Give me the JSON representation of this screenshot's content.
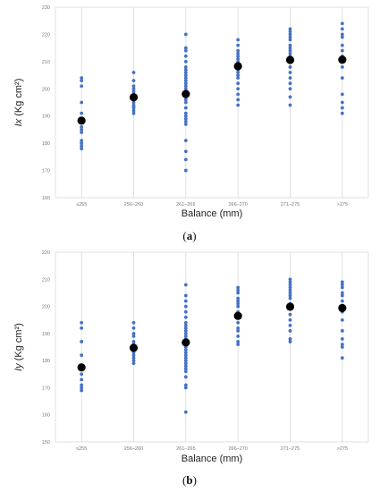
{
  "chart_data": [
    {
      "type": "scatter",
      "panel_label": "(a)",
      "xlabel": "Balance (mm)",
      "ylabel": "Ix (Kg cm²)",
      "ylabel_main": "Ix",
      "ylabel_unit": "(Kg cm²)",
      "categories": [
        "≤255",
        "256–260",
        "261–265",
        "266–270",
        "271–275",
        ">275"
      ],
      "ylim": [
        160,
        230
      ],
      "yticks": [
        160,
        170,
        180,
        190,
        200,
        210,
        220,
        230
      ],
      "grid": "vertical",
      "colors": {
        "points": "#4472c4",
        "means": "#000000"
      },
      "series": [
        {
          "values": [
            [
              178,
              179,
              180,
              181,
              184,
              185,
              186,
              189,
              191,
              195,
              201,
              203,
              204
            ],
            [
              191,
              192,
              193,
              193.5,
              194,
              195,
              196,
              197,
              198,
              199,
              200,
              201,
              203,
              206
            ],
            [
              170,
              174,
              177,
              181,
              187,
              188,
              189,
              190,
              191,
              193,
              195,
              196,
              197,
              198,
              199,
              200,
              201,
              202,
              203,
              204,
              205,
              206,
              207,
              208,
              210,
              212,
              214,
              215,
              220
            ],
            [
              194,
              196,
              198,
              200,
              202,
              204,
              205,
              206,
              207,
              208,
              209,
              210,
              211,
              212,
              213,
              214,
              216,
              218
            ],
            [
              194,
              197,
              200,
              202,
              204,
              206,
              208,
              210,
              212,
              213,
              214,
              215,
              216,
              218,
              219,
              220,
              221,
              222
            ],
            [
              191,
              193,
              195,
              198,
              204,
              208,
              210,
              212,
              214,
              216,
              219,
              220,
              222,
              224
            ]
          ]
        },
        {
          "name": "mean",
          "values": [
            188.3,
            196.9,
            198.1,
            208.3,
            210.6,
            210.7
          ]
        }
      ]
    },
    {
      "type": "scatter",
      "panel_label": "(b)",
      "xlabel": "Balance (mm)",
      "ylabel": "Iy (Kg cm²)",
      "ylabel_main": "Iy",
      "ylabel_unit": "(Kg cm²)",
      "categories": [
        "≤255",
        "256–260",
        "261–265",
        "266–270",
        "271–275",
        ">275"
      ],
      "ylim": [
        150,
        220
      ],
      "yticks": [
        150,
        160,
        170,
        180,
        190,
        200,
        210,
        220
      ],
      "grid": "vertical",
      "colors": {
        "points": "#4472c4",
        "means": "#000000"
      },
      "series": [
        {
          "values": [
            [
              169,
              170,
              171,
              173,
              175,
              177,
              182,
              187,
              192,
              194
            ],
            [
              179,
              180,
              181,
              182,
              183,
              184,
              185,
              186,
              187,
              189,
              190,
              192,
              194
            ],
            [
              161,
              170,
              171,
              174,
              176,
              177,
              178,
              179,
              180,
              181,
              182,
              183,
              184,
              185,
              186,
              187,
              188,
              189,
              190,
              191,
              192,
              193,
              194,
              196,
              198,
              200,
              202,
              204,
              208
            ],
            [
              186,
              187,
              189,
              191,
              192,
              194,
              196,
              198,
              200,
              201,
              202,
              203,
              205,
              206,
              207
            ],
            [
              187,
              188,
              191,
              193,
              195,
              197,
              199,
              201,
              203,
              204,
              205,
              206,
              207,
              208,
              209,
              210
            ],
            [
              181,
              185,
              186,
              188,
              191,
              195,
              198,
              199,
              202,
              204,
              205,
              207,
              208,
              209
            ]
          ]
        },
        {
          "name": "mean",
          "values": [
            177.5,
            184.7,
            186.7,
            196.5,
            199.9,
            199.4
          ]
        }
      ]
    }
  ]
}
